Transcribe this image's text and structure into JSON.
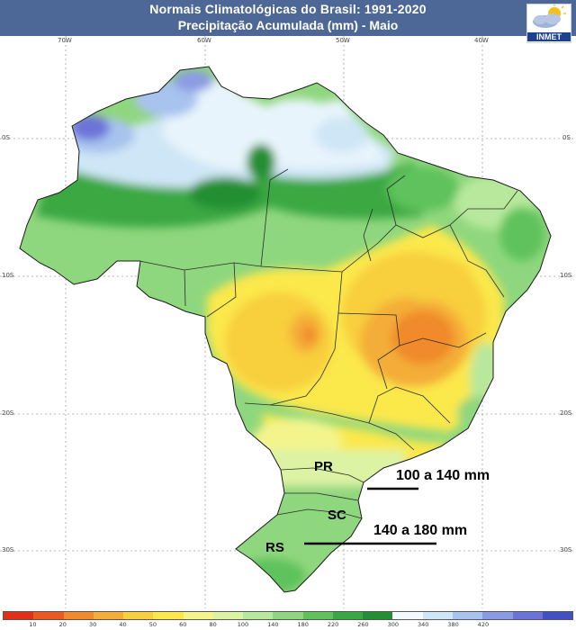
{
  "title": {
    "line1": "Normais Climatológicas do Brasil: 1991-2020",
    "line2": "Precipitação Acumulada (mm) - Maio"
  },
  "logo": {
    "text": "INMET",
    "icon": "cloud-sun-icon"
  },
  "coordinates": {
    "lon_top": [
      "70W",
      "60W",
      "50W",
      "40W"
    ],
    "lat_left": [
      "0S",
      "10S",
      "20S",
      "30S"
    ],
    "lat_right": [
      "0S",
      "10S",
      "20S",
      "30S"
    ]
  },
  "legend": {
    "colors": [
      "#e03018",
      "#ea5a20",
      "#f08a2c",
      "#f4ad38",
      "#f8cf3e",
      "#fbe84c",
      "#f3f58c",
      "#dcf3a4",
      "#b8e89c",
      "#8fd77e",
      "#5fc25c",
      "#3aa842",
      "#238f32",
      "#f2fafe",
      "#cfe6f6",
      "#a7c3ee",
      "#8b9be3",
      "#6c73d8",
      "#4350c4"
    ],
    "ticks": [
      "10",
      "20",
      "30",
      "40",
      "50",
      "60",
      "80",
      "100",
      "140",
      "180",
      "220",
      "260",
      "300",
      "340",
      "380",
      "420"
    ]
  },
  "labels": {
    "states": [
      "PR",
      "SC",
      "RS"
    ],
    "annotations": [
      "100 a 140 mm",
      "140 a 180 mm"
    ]
  }
}
